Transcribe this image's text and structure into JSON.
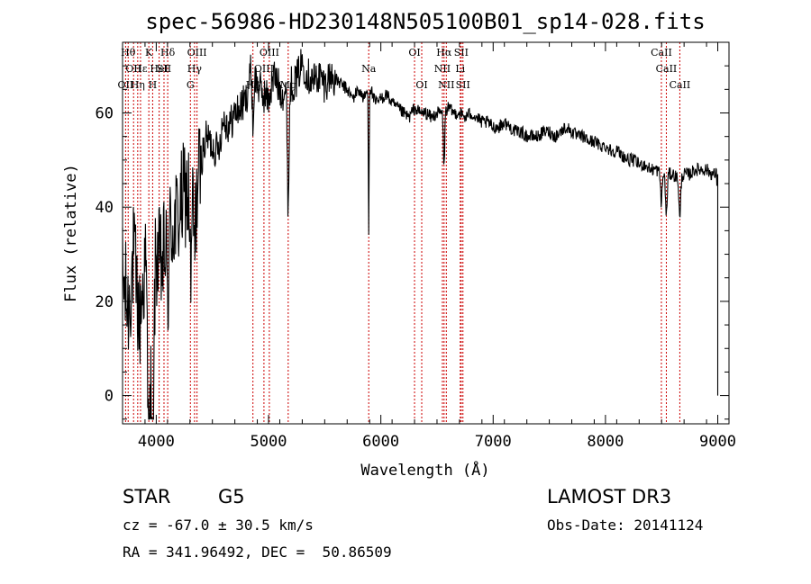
{
  "chart_data": {
    "type": "line",
    "title": "spec-56986-HD230148N505100B01_sp14-028.fits",
    "xlabel": "Wavelength (Å)",
    "ylabel": "Flux (relative)",
    "xlim": [
      3700,
      9100
    ],
    "ylim": [
      -6,
      75
    ],
    "xticks": [
      4000,
      5000,
      6000,
      7000,
      8000,
      9000
    ],
    "yticks": [
      0,
      20,
      40,
      60
    ],
    "continuum": [
      [
        3700,
        25
      ],
      [
        3750,
        18
      ],
      [
        3800,
        30
      ],
      [
        3850,
        15
      ],
      [
        3900,
        28
      ],
      [
        3950,
        10
      ],
      [
        4000,
        30
      ],
      [
        4050,
        27
      ],
      [
        4100,
        34
      ],
      [
        4150,
        36
      ],
      [
        4200,
        38
      ],
      [
        4250,
        43
      ],
      [
        4300,
        42
      ],
      [
        4350,
        41
      ],
      [
        4400,
        50
      ],
      [
        4450,
        55
      ],
      [
        4500,
        53
      ],
      [
        4550,
        52
      ],
      [
        4600,
        59
      ],
      [
        4650,
        57
      ],
      [
        4700,
        60
      ],
      [
        4750,
        61
      ],
      [
        4800,
        63
      ],
      [
        4850,
        70
      ],
      [
        4900,
        66
      ],
      [
        4950,
        64
      ],
      [
        5000,
        63
      ],
      [
        5050,
        68
      ],
      [
        5100,
        65
      ],
      [
        5150,
        64
      ],
      [
        5200,
        66
      ],
      [
        5250,
        67
      ],
      [
        5300,
        71
      ],
      [
        5350,
        68
      ],
      [
        5400,
        67
      ],
      [
        5450,
        68
      ],
      [
        5500,
        66
      ],
      [
        5550,
        68
      ],
      [
        5600,
        67
      ],
      [
        5650,
        66
      ],
      [
        5700,
        65
      ],
      [
        5750,
        63
      ],
      [
        5800,
        65
      ],
      [
        5850,
        63
      ],
      [
        5900,
        66
      ],
      [
        5950,
        62
      ],
      [
        6000,
        63
      ],
      [
        6050,
        64
      ],
      [
        6100,
        62
      ],
      [
        6150,
        61
      ],
      [
        6200,
        60
      ],
      [
        6250,
        59
      ],
      [
        6300,
        61
      ],
      [
        6350,
        60
      ],
      [
        6400,
        60
      ],
      [
        6450,
        59
      ],
      [
        6500,
        60
      ],
      [
        6550,
        60
      ],
      [
        6600,
        61
      ],
      [
        6650,
        60
      ],
      [
        6700,
        60
      ],
      [
        6750,
        59
      ],
      [
        6800,
        60
      ],
      [
        6850,
        59
      ],
      [
        6900,
        58
      ],
      [
        6950,
        58
      ],
      [
        7000,
        57
      ],
      [
        7050,
        57
      ],
      [
        7100,
        58
      ],
      [
        7150,
        57
      ],
      [
        7200,
        56
      ],
      [
        7250,
        56
      ],
      [
        7300,
        55
      ],
      [
        7350,
        55
      ],
      [
        7400,
        55
      ],
      [
        7450,
        56
      ],
      [
        7500,
        56
      ],
      [
        7550,
        55
      ],
      [
        7600,
        56
      ],
      [
        7650,
        57
      ],
      [
        7700,
        56
      ],
      [
        7750,
        55
      ],
      [
        7800,
        55
      ],
      [
        7850,
        54
      ],
      [
        7900,
        54
      ],
      [
        7950,
        53
      ],
      [
        8000,
        53
      ],
      [
        8050,
        52
      ],
      [
        8100,
        52
      ],
      [
        8150,
        51
      ],
      [
        8200,
        50
      ],
      [
        8250,
        50
      ],
      [
        8300,
        49
      ],
      [
        8350,
        49
      ],
      [
        8400,
        48
      ],
      [
        8450,
        48
      ],
      [
        8500,
        47
      ],
      [
        8550,
        47
      ],
      [
        8600,
        47
      ],
      [
        8650,
        46
      ],
      [
        8700,
        47
      ],
      [
        8750,
        47
      ],
      [
        8800,
        48
      ],
      [
        8850,
        48
      ],
      [
        8900,
        48
      ],
      [
        8950,
        47
      ],
      [
        8990,
        47
      ],
      [
        9000,
        40
      ],
      [
        9000,
        0
      ]
    ],
    "absorption": [
      {
        "w": 3968,
        "depth": 40,
        "width": 12
      },
      {
        "w": 3934,
        "depth": 35,
        "width": 12
      },
      {
        "w": 4102,
        "depth": 15,
        "width": 10
      },
      {
        "w": 4308,
        "depth": 18,
        "width": 10
      },
      {
        "w": 4341,
        "depth": 10,
        "width": 10
      },
      {
        "w": 4861,
        "depth": 12,
        "width": 10
      },
      {
        "w": 5175,
        "depth": 25,
        "width": 10
      },
      {
        "w": 5892,
        "depth": 30,
        "width": 5
      },
      {
        "w": 6563,
        "depth": 12,
        "width": 8
      },
      {
        "w": 8498,
        "depth": 6,
        "width": 10
      },
      {
        "w": 8542,
        "depth": 9,
        "width": 10
      },
      {
        "w": 8662,
        "depth": 9,
        "width": 10
      }
    ],
    "noise_amplitude": {
      "blue": 12,
      "mid": 4,
      "red": 1.4
    },
    "line_color": "#000000",
    "marker_color": "#cc0000",
    "spectral_lines": [
      {
        "w": 3750,
        "label": "Hθ",
        "row": 0
      },
      {
        "w": 3798,
        "label": "OII",
        "row": 1
      },
      {
        "w": 3727,
        "label": "OII",
        "row": 2
      },
      {
        "w": 3835,
        "label": "Hη",
        "row": 2
      },
      {
        "w": 3860,
        "label": "Hε",
        "row": 1
      },
      {
        "w": 3934,
        "label": "K",
        "row": 0
      },
      {
        "w": 3968,
        "label": "H",
        "row": 2
      },
      {
        "w": 4026,
        "label": "HeI",
        "row": 1
      },
      {
        "w": 4069,
        "label": "SII",
        "row": 1
      },
      {
        "w": 4102,
        "label": "Hδ",
        "row": 0
      },
      {
        "w": 4304,
        "label": "G",
        "row": 2
      },
      {
        "w": 4341,
        "label": "Hγ",
        "row": 1
      },
      {
        "w": 4363,
        "label": "OIII",
        "row": 0
      },
      {
        "w": 4861,
        "label": "Hβ",
        "row": 2
      },
      {
        "w": 4959,
        "label": "OIII",
        "row": 1
      },
      {
        "w": 5007,
        "label": "OIII",
        "row": 0
      },
      {
        "w": 5175,
        "label": "Mg",
        "row": 2
      },
      {
        "w": 5892,
        "label": "Na",
        "row": 1
      },
      {
        "w": 6300,
        "label": "OI",
        "row": 0
      },
      {
        "w": 6364,
        "label": "OI",
        "row": 2
      },
      {
        "w": 6548,
        "label": "NII",
        "row": 1
      },
      {
        "w": 6563,
        "label": "Hα",
        "row": 0
      },
      {
        "w": 6583,
        "label": "NII",
        "row": 2
      },
      {
        "w": 6707,
        "label": "Li",
        "row": 1
      },
      {
        "w": 6716,
        "label": "SII",
        "row": 0
      },
      {
        "w": 6731,
        "label": "SII",
        "row": 2
      },
      {
        "w": 8498,
        "label": "CaII",
        "row": 0
      },
      {
        "w": 8542,
        "label": "CaII",
        "row": 1
      },
      {
        "w": 8662,
        "label": "CaII",
        "row": 2
      }
    ]
  },
  "info": {
    "object_class": "STAR",
    "subclass": "G5",
    "survey": "LAMOST DR3",
    "redshift": "cz = -67.0 ± 30.5 km/s",
    "obs_date": "Obs-Date: 20141124",
    "coords": "RA = 341.96492, DEC =  50.86509"
  }
}
